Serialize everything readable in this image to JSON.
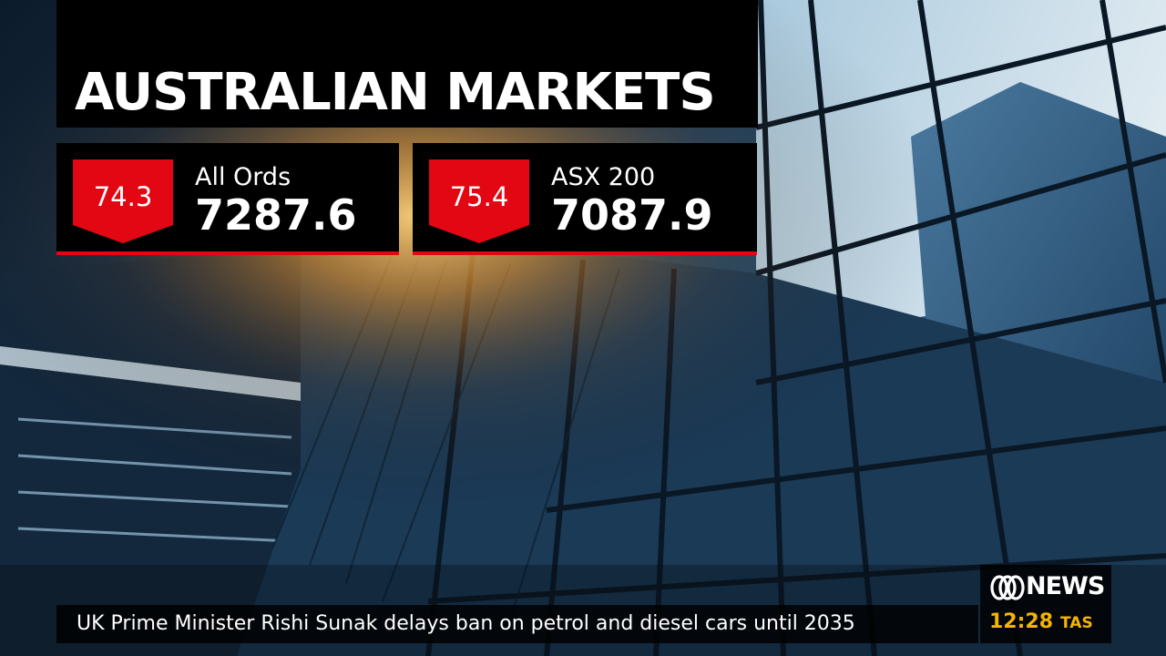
{
  "header": {
    "title": "AUSTRALIAN MARKETS"
  },
  "indices": [
    {
      "change": "74.3",
      "name": "All Ords",
      "value": "7287.6",
      "direction": "down"
    },
    {
      "change": "75.4",
      "name": "ASX 200",
      "value": "7087.9",
      "direction": "down"
    }
  ],
  "ticker": {
    "headline": "UK Prime Minister Rishi Sunak delays ban on petrol and diesel cars until 2035"
  },
  "branding": {
    "logo_icon": "abc-lissajous-icon",
    "logo_text": "NEWS",
    "time": "12:28",
    "timezone": "TAS"
  },
  "colors": {
    "accent_red": "#e30613",
    "clock_amber": "#f5b400",
    "panel_black": "#000000"
  }
}
